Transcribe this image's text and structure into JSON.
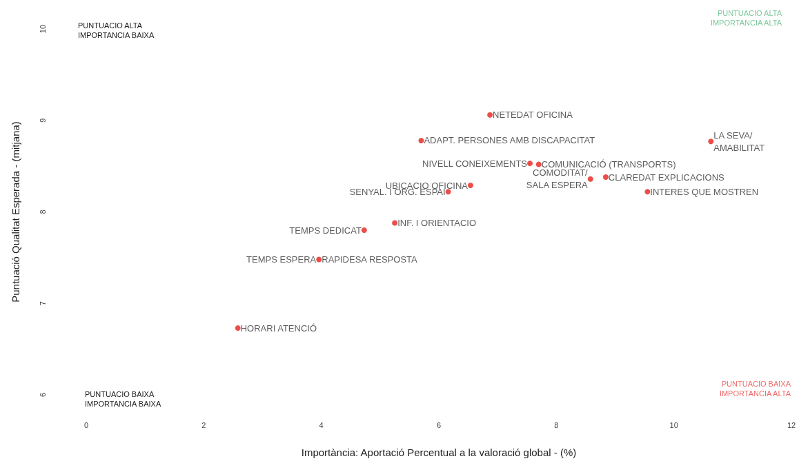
{
  "chart_data": {
    "type": "scatter",
    "xlabel": "Importància: Aportació Percentual a la valoració global - (%)",
    "ylabel": "Puntuació Qualitat Esperada - (mitjana)",
    "xlim": [
      0,
      12
    ],
    "xticks": [
      0,
      2,
      4,
      6,
      8,
      10,
      12
    ],
    "ylim": [
      6,
      10
    ],
    "yticks": [
      6,
      7,
      8,
      9,
      10
    ],
    "grid": false,
    "marker": "circle",
    "series": [
      {
        "color": "#e8201c",
        "x": [
          6.87,
          5.7,
          10.63,
          7.55,
          7.7,
          8.58,
          8.84,
          9.55,
          6.54,
          6.16,
          5.25,
          4.73,
          3.96,
          2.58
        ],
        "values": [
          9.06,
          8.78,
          8.77,
          8.53,
          8.52,
          8.36,
          8.38,
          8.22,
          8.29,
          8.22,
          7.88,
          7.8,
          7.48,
          6.73
        ]
      }
    ],
    "annotations": [
      "PUNTUACIO ALTA\nIMPORTANCIA BAIXA",
      "PUNTUACIO ALTA\nIMPORTANCIA ALTA",
      "PUNTUACIO BAIXA\nIMPORTANCIA BAIXA",
      "PUNTUACIO BAIXA\nIMPORTANCIA ALTA",
      {
        "text": "NETEDAT OFICINA",
        "x": 6.87,
        "y": 9.06
      },
      {
        "text": "ADAPT. PERSONES AMB DISCAPACITAT",
        "x": 5.7,
        "y": 8.78
      },
      {
        "text": "LA SEVA/\nAMABILITAT",
        "x": 10.63,
        "y": 8.77
      },
      {
        "text": "NIVELL CONEIXEMENTS",
        "x": 7.55,
        "y": 8.53
      },
      {
        "text": "COMUNICACIÓ (TRANSPORTS)",
        "x": 7.7,
        "y": 8.52
      },
      {
        "text": "COMODITAT/\nSALA ESPERA",
        "x": 8.58,
        "y": 8.36
      },
      {
        "text": "CLAREDAT EXPLICACIONS",
        "x": 8.84,
        "y": 8.38
      },
      {
        "text": "INTERES QUE MOSTREN",
        "x": 9.55,
        "y": 8.22
      },
      {
        "text": "UBICACIO OFICINA",
        "x": 6.54,
        "y": 8.29
      },
      {
        "text": "SENYAL. I ORG. ESPAI",
        "x": 6.16,
        "y": 8.22
      },
      {
        "text": "INF. I ORIENTACIO",
        "x": 5.25,
        "y": 7.88
      },
      {
        "text": "TEMPS DEDICAT",
        "x": 4.73,
        "y": 7.8
      },
      {
        "text": "TEMPS ESPERA",
        "x": 3.96,
        "y": 7.48
      },
      {
        "text": "RAPIDESA RESPOSTA",
        "x": 3.96,
        "y": 7.48
      },
      {
        "text": "HORARI ATENCIÓ",
        "x": 2.58,
        "y": 6.73
      }
    ]
  }
}
